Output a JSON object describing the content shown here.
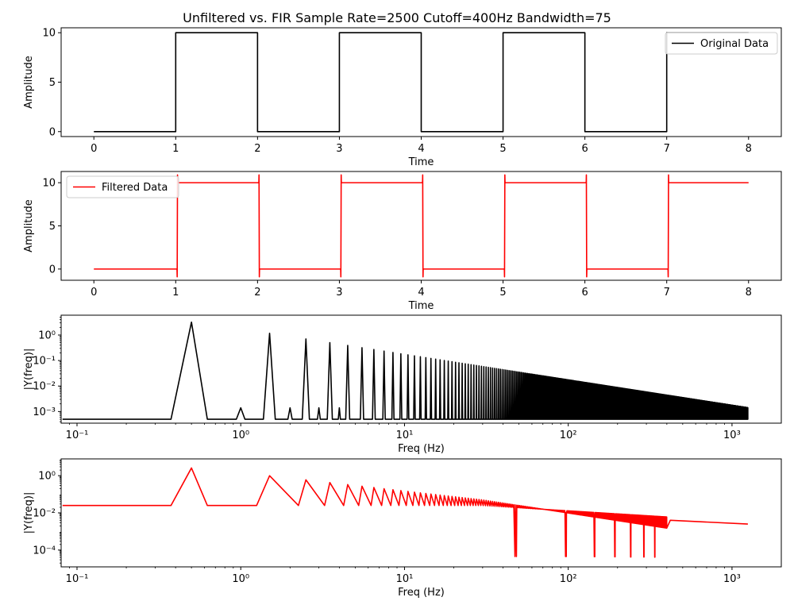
{
  "figure_title": "Unfiltered vs. FIR Sample Rate=2500 Cutoff=400Hz Bandwidth=75",
  "chart_data": [
    {
      "type": "line",
      "id": "unfiltered-time",
      "xlabel": "Time",
      "ylabel": "Amplitude",
      "xscale": "linear",
      "yscale": "linear",
      "xlim": [
        -0.4,
        8.4
      ],
      "ylim": [
        -0.5,
        10.5
      ],
      "xticks": [
        0,
        1,
        2,
        3,
        4,
        5,
        6,
        7,
        8
      ],
      "xtick_labels": [
        "0",
        "1",
        "2",
        "3",
        "4",
        "5",
        "6",
        "7",
        "8"
      ],
      "yticks": [
        0,
        5,
        10
      ],
      "ytick_labels": [
        "0",
        "5",
        "10"
      ],
      "legend_position": "upper right",
      "series": [
        {
          "name": "Original Data",
          "color": "#000000",
          "x": [
            0,
            1,
            1,
            2,
            2,
            3,
            3,
            4,
            4,
            5,
            5,
            6,
            6,
            7,
            7,
            8
          ],
          "y": [
            0,
            0,
            10,
            10,
            0,
            0,
            10,
            10,
            0,
            0,
            10,
            10,
            0,
            0,
            10,
            10
          ]
        }
      ]
    },
    {
      "type": "line",
      "id": "filtered-time",
      "xlabel": "Time",
      "ylabel": "Amplitude",
      "xscale": "linear",
      "yscale": "linear",
      "xlim": [
        -0.4,
        8.4
      ],
      "ylim": [
        -1.3,
        11.3
      ],
      "xticks": [
        0,
        1,
        2,
        3,
        4,
        5,
        6,
        7,
        8
      ],
      "xtick_labels": [
        "0",
        "1",
        "2",
        "3",
        "4",
        "5",
        "6",
        "7",
        "8"
      ],
      "yticks": [
        0,
        5,
        10
      ],
      "ytick_labels": [
        "0",
        "5",
        "10"
      ],
      "legend_position": "upper left",
      "series": [
        {
          "name": "Filtered Data",
          "color": "#ff0000",
          "transition_times": [
            1.02,
            2.02,
            3.02,
            4.02,
            5.02,
            6.02,
            7.02
          ],
          "levels": [
            0,
            10
          ],
          "ringing_min": -0.9,
          "ringing_max": 10.9,
          "x_end": 8
        }
      ]
    },
    {
      "type": "line",
      "id": "unfiltered-spectrum",
      "xlabel": "Freq (Hz)",
      "ylabel": "|Y(freq)|",
      "xscale": "log",
      "yscale": "log",
      "xlim": [
        0.08,
        2000
      ],
      "ylim": [
        0.00035,
        6
      ],
      "xticks": [
        0.1,
        1,
        10,
        100,
        1000
      ],
      "xtick_labels": [
        "10⁻¹",
        "10⁰",
        "10¹",
        "10²",
        "10³"
      ],
      "yticks": [
        0.001,
        0.01,
        0.1,
        1
      ],
      "ytick_labels": [
        "10⁻³",
        "10⁻²",
        "10⁻¹",
        "10⁰"
      ],
      "series": [
        {
          "name": "",
          "color": "#000000",
          "fundamental_hz": 0.5,
          "peak_amplitude": 3.2,
          "floor": 0.0005,
          "small_bumps": [
            {
              "f": 1.0,
              "v": 0.0014
            },
            {
              "f": 2.0,
              "v": 0.0014
            },
            {
              "f": 3.0,
              "v": 0.0014
            },
            {
              "f": 4.0,
              "v": 0.0014
            }
          ],
          "f_max": 1250
        }
      ]
    },
    {
      "type": "line",
      "id": "filtered-spectrum",
      "xlabel": "Freq (Hz)",
      "ylabel": "|Y(freq)|",
      "xscale": "log",
      "yscale": "log",
      "xlim": [
        0.08,
        2000
      ],
      "ylim": [
        1.25e-05,
        8
      ],
      "xticks": [
        0.1,
        1,
        10,
        100,
        1000
      ],
      "xtick_labels": [
        "10⁻¹",
        "10⁰",
        "10¹",
        "10²",
        "10³"
      ],
      "yticks": [
        0.0001,
        0.01,
        1
      ],
      "ytick_labels": [
        "10⁻⁴",
        "10⁻²",
        "10⁰"
      ],
      "series": [
        {
          "name": "",
          "color": "#ff0000",
          "fundamental_hz": 0.5,
          "peak_amplitude": 2.6,
          "floor": 0.025,
          "cutoff_hz": 400,
          "notch_frequencies": [
            48,
            97,
            145,
            193,
            241,
            290,
            338
          ],
          "tail_start": 0.004,
          "tail_end": 0.0025,
          "f_max": 1250
        }
      ]
    }
  ]
}
